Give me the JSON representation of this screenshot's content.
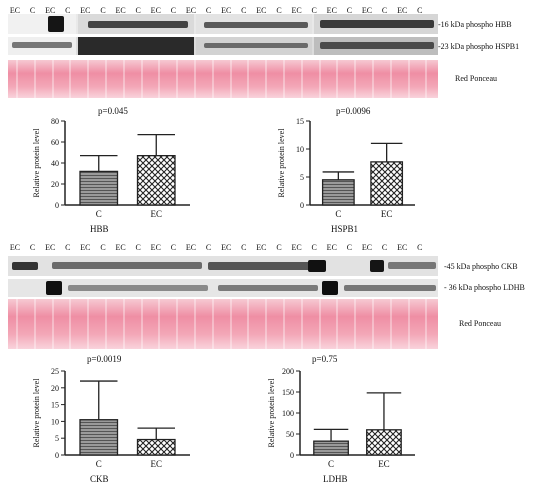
{
  "top_panel": {
    "lanes": [
      "EC",
      "C",
      "EC",
      "C",
      "EC",
      "C",
      "EC",
      "C",
      "EC",
      "C",
      "EC",
      "C",
      "EC",
      "C",
      "EC",
      "C",
      "EC",
      "C",
      "EC",
      "C",
      "EC",
      "C",
      "EC",
      "C"
    ],
    "band_labels": [
      "-16 kDa phospho HBB",
      "-23 kDa phospho HSPB1",
      "Red Ponceau"
    ]
  },
  "bottom_panel": {
    "lanes": [
      "EC",
      "C",
      "EC",
      "C",
      "EC",
      "C",
      "EC",
      "C",
      "EC",
      "C",
      "EC",
      "C",
      "EC",
      "C",
      "EC",
      "C",
      "EC",
      "C",
      "EC",
      "C",
      "EC",
      "C",
      "EC",
      "C"
    ],
    "band_labels": [
      "-45 kDa phospho CKB",
      "- 36 kDa phospho LDHB",
      "Red Ponceau"
    ]
  },
  "chart_data": [
    {
      "type": "bar",
      "title": "HBB",
      "pvalue": "p=0.045",
      "ylabel": "Relative protein level",
      "categories": [
        "C",
        "EC"
      ],
      "values": [
        32,
        47
      ],
      "errors": [
        15,
        20
      ],
      "ylim": [
        0,
        80
      ],
      "yticks": [
        0,
        20,
        40,
        60,
        80
      ]
    },
    {
      "type": "bar",
      "title": "HSPB1",
      "pvalue": "p=0.0096",
      "ylabel": "Relative protein level",
      "categories": [
        "C",
        "EC"
      ],
      "values": [
        4.5,
        7.7
      ],
      "errors": [
        1.4,
        3.3
      ],
      "ylim": [
        0,
        15
      ],
      "yticks": [
        0,
        5,
        10,
        15
      ]
    },
    {
      "type": "bar",
      "title": "CKB",
      "pvalue": "p=0.0019",
      "ylabel": "Relative protein level",
      "categories": [
        "C",
        "EC"
      ],
      "values": [
        10.5,
        4.6
      ],
      "errors": [
        11.5,
        3.4
      ],
      "ylim": [
        0,
        25
      ],
      "yticks": [
        0,
        5,
        10,
        15,
        20,
        25
      ]
    },
    {
      "type": "bar",
      "title": "LDHB",
      "pvalue": "p=0.75",
      "ylabel": "Relative protein level",
      "categories": [
        "C",
        "EC"
      ],
      "values": [
        33,
        60
      ],
      "errors": [
        28,
        88
      ],
      "ylim": [
        0,
        200
      ],
      "yticks": [
        0,
        50,
        100,
        150,
        200
      ]
    }
  ],
  "colors": {
    "bar_c_fill": "#9a9a9a",
    "bar_ec_fill": "#ffffff",
    "axis": "#222222"
  }
}
